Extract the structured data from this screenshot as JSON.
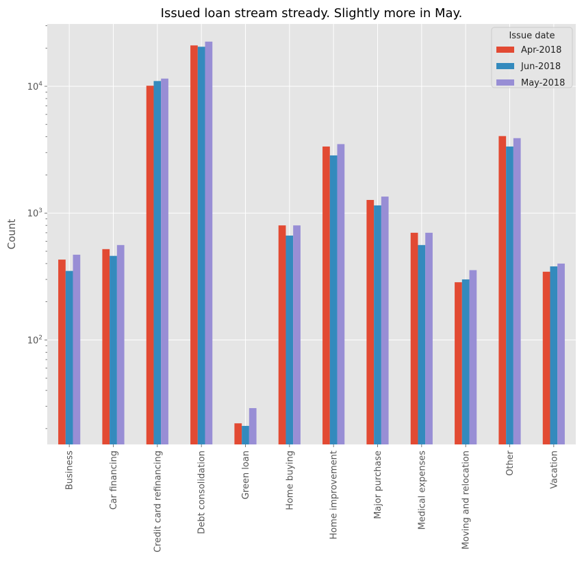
{
  "chart_data": {
    "type": "bar",
    "title": "Issued loan stream stready. Slightly more in May.",
    "xlabel": "",
    "ylabel": "Count",
    "yscale": "log",
    "ylim": [
      15,
      31000
    ],
    "grid": true,
    "legend": {
      "title": "Issue date",
      "placement": "top-right"
    },
    "categories": [
      "Business",
      "Car financing",
      "Credit card refinancing",
      "Debt consolidation",
      "Green loan",
      "Home buying",
      "Home improvement",
      "Major purchase",
      "Medical expenses",
      "Moving and relocation",
      "Other",
      "Vacation"
    ],
    "series": [
      {
        "name": "Apr-2018",
        "color": "#E24A33",
        "values": [
          430,
          520,
          10100,
          21000,
          22,
          800,
          3350,
          1270,
          700,
          285,
          4050,
          345
        ]
      },
      {
        "name": "Jun-2018",
        "color": "#348ABD",
        "values": [
          350,
          460,
          11000,
          20500,
          21,
          665,
          2850,
          1150,
          560,
          300,
          3350,
          380
        ]
      },
      {
        "name": "May-2018",
        "color": "#988ED5",
        "values": [
          470,
          560,
          11500,
          22500,
          29,
          800,
          3500,
          1350,
          700,
          355,
          3900,
          400
        ]
      }
    ],
    "y_ticks": [
      {
        "value": 100,
        "base": "10",
        "exp": "2"
      },
      {
        "value": 1000,
        "base": "10",
        "exp": "3"
      },
      {
        "value": 10000,
        "base": "10",
        "exp": "4"
      }
    ]
  }
}
